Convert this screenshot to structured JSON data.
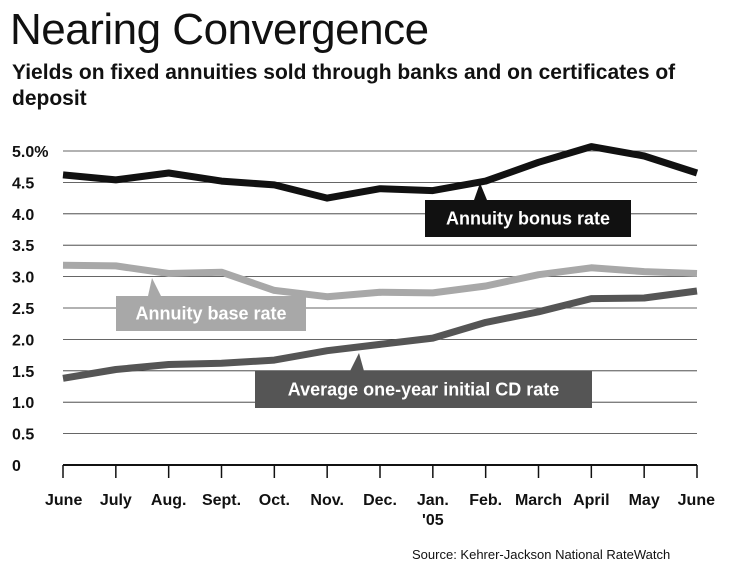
{
  "title": "Nearing Convergence",
  "subtitle": "Yields on fixed annuities sold through banks and on certificates of deposit",
  "source": "Source: Kehrer-Jackson National RateWatch",
  "chart_data": {
    "type": "line",
    "categories": [
      "June",
      "July",
      "Aug.",
      "Sept.",
      "Oct.",
      "Nov.",
      "Dec.",
      "Jan. '05",
      "Feb.",
      "March",
      "April",
      "May",
      "June"
    ],
    "x_tick_labels": [
      {
        "line1": "June",
        "line2": ""
      },
      {
        "line1": "July",
        "line2": ""
      },
      {
        "line1": "Aug.",
        "line2": ""
      },
      {
        "line1": "Sept.",
        "line2": ""
      },
      {
        "line1": "Oct.",
        "line2": ""
      },
      {
        "line1": "Nov.",
        "line2": ""
      },
      {
        "line1": "Dec.",
        "line2": ""
      },
      {
        "line1": "Jan.",
        "line2": "'05"
      },
      {
        "line1": "Feb.",
        "line2": ""
      },
      {
        "line1": "March",
        "line2": ""
      },
      {
        "line1": "April",
        "line2": ""
      },
      {
        "line1": "May",
        "line2": ""
      },
      {
        "line1": "June",
        "line2": ""
      }
    ],
    "y_ticks": [
      0,
      0.5,
      1.0,
      1.5,
      2.0,
      2.5,
      3.0,
      3.5,
      4.0,
      4.5,
      5.0
    ],
    "y_tick_labels": [
      "0",
      "0.5",
      "1.0",
      "1.5",
      "2.0",
      "2.5",
      "3.0",
      "3.5",
      "4.0",
      "4.5",
      "5.0%"
    ],
    "ylim": [
      0,
      5.2
    ],
    "grid": "horizontal",
    "series": [
      {
        "name": "Annuity bonus rate",
        "color": "#111111",
        "values": [
          4.62,
          4.54,
          4.65,
          4.52,
          4.46,
          4.25,
          4.4,
          4.37,
          4.52,
          4.82,
          5.07,
          4.92,
          4.65
        ]
      },
      {
        "name": "Annuity base rate",
        "color": "#a8a8a8",
        "values": [
          3.18,
          3.17,
          3.05,
          3.07,
          2.78,
          2.68,
          2.75,
          2.74,
          2.85,
          3.03,
          3.14,
          3.08,
          3.05
        ]
      },
      {
        "name": "Average one-year initial CD rate",
        "color": "#555555",
        "values": [
          1.38,
          1.52,
          1.6,
          1.62,
          1.67,
          1.82,
          1.92,
          2.02,
          2.27,
          2.44,
          2.65,
          2.66,
          2.77
        ]
      }
    ]
  }
}
